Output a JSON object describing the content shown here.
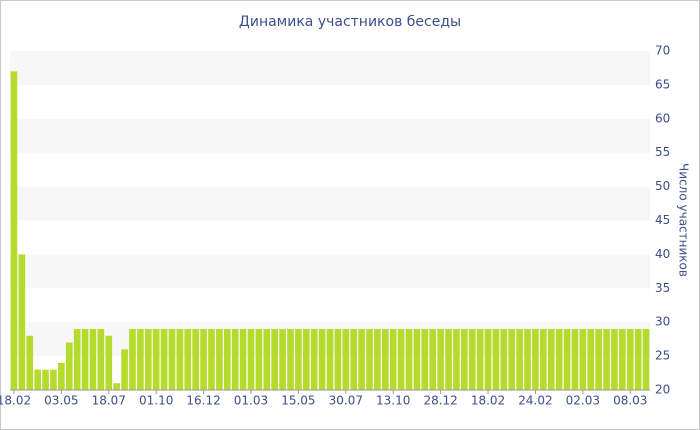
{
  "chart_data": {
    "type": "bar",
    "title": "Динамика участников беседы",
    "y_label": "Число участников",
    "color": "#b5dc2d",
    "categories": [
      "18.02",
      null,
      null,
      null,
      null,
      null,
      "03.05",
      null,
      null,
      null,
      null,
      null,
      "18.07",
      null,
      null,
      null,
      null,
      null,
      "01.10",
      null,
      null,
      null,
      null,
      null,
      "16.12",
      null,
      null,
      null,
      null,
      null,
      "01.03",
      null,
      null,
      null,
      null,
      null,
      "15.05",
      null,
      null,
      null,
      null,
      null,
      "30.07",
      null,
      null,
      null,
      null,
      null,
      "13.10",
      null,
      null,
      null,
      null,
      null,
      "28.12",
      null,
      null,
      null,
      null,
      null,
      "18.02",
      null,
      null,
      null,
      null,
      null,
      "24.02",
      null,
      null,
      null,
      null,
      null,
      "02.03",
      null,
      null,
      null,
      null,
      null,
      "08.03",
      null,
      null
    ],
    "values": [
      67,
      40,
      28,
      23,
      23,
      23,
      24,
      27,
      29,
      29,
      29,
      29,
      28,
      21,
      26,
      29,
      29,
      29,
      29,
      29,
      29,
      29,
      29,
      29,
      29,
      29,
      29,
      29,
      29,
      29,
      29,
      29,
      29,
      29,
      29,
      29,
      29,
      29,
      29,
      29,
      29,
      29,
      29,
      29,
      29,
      29,
      29,
      29,
      29,
      29,
      29,
      29,
      29,
      29,
      29,
      29,
      29,
      29,
      29,
      29,
      29,
      29,
      29,
      29,
      29,
      29,
      29,
      29,
      29,
      29,
      29,
      29,
      29,
      29,
      29,
      29,
      29,
      29,
      29,
      29,
      29
    ],
    "ylim": [
      20,
      70
    ],
    "yticks": [
      20,
      25,
      30,
      35,
      40,
      45,
      50,
      55,
      60,
      65,
      70
    ],
    "grid": true
  }
}
